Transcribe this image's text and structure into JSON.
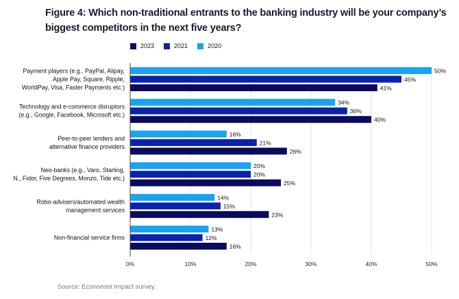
{
  "title": "Figure 4: Which non-traditional entrants to the banking industry will be your company’s biggest competitors in the next five years?",
  "source": "Source: Economist Impact survey.",
  "colors": {
    "2023": "#0a0a5e",
    "2021": "#0b22b0",
    "2020": "#1aa3f0",
    "grid": "#e6e6e6",
    "axis": "#444444"
  },
  "legend": [
    {
      "label": "2023",
      "key": "2023"
    },
    {
      "label": "2021",
      "key": "2021"
    },
    {
      "label": "2020",
      "key": "2020"
    }
  ],
  "chart_data": {
    "type": "bar",
    "orientation": "horizontal",
    "title": "Figure 4: Which non-traditional entrants to the banking industry will be your company’s biggest competitors in the next five years?",
    "xlabel": "",
    "ylabel": "",
    "xlim": [
      0,
      50
    ],
    "xticks": [
      "0%",
      "10%",
      "20%",
      "30%",
      "40%",
      "50%"
    ],
    "grid": true,
    "legend_position": "top",
    "categories": [
      [
        "Payment players  (e.g., PayPal, Alipay,",
        "Apple Pay, Square, Ripple,",
        "WorldPay, Visa, Faster Payments etc.)"
      ],
      [
        "Technology and e-commerce disruptors",
        "(e.g., Google, Facebook, Microsoft etc.)"
      ],
      [
        "Peer-to-peer lenders and",
        "alternative finance providers"
      ],
      [
        "Neo-banks (e.g., Varo, Starling,",
        "N., Fidor, Five Degrees, Monzo, Tide etc.)"
      ],
      [
        "Robo-advisers/automated wealth",
        "management services"
      ],
      [
        "Non-financial service firms"
      ]
    ],
    "series": [
      {
        "name": "2020",
        "values": [
          50,
          34,
          16,
          20,
          14,
          13
        ]
      },
      {
        "name": "2021",
        "values": [
          45,
          36,
          21,
          20,
          15,
          12
        ]
      },
      {
        "name": "2023",
        "values": [
          41,
          40,
          26,
          25,
          23,
          16
        ]
      }
    ]
  }
}
